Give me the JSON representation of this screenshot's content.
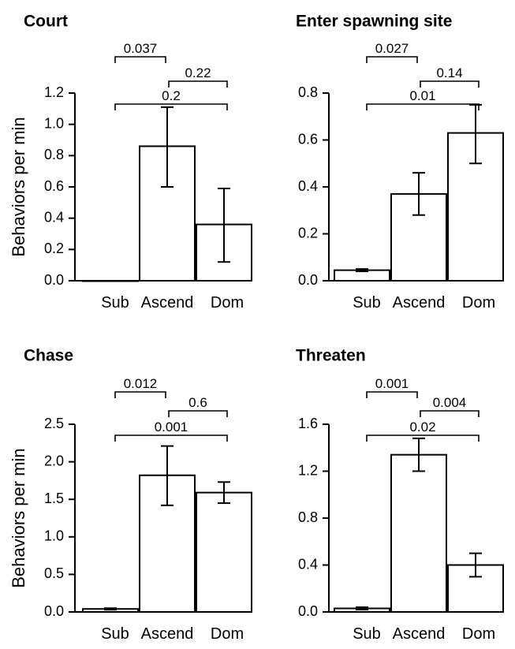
{
  "ylabel": "Behaviors per min",
  "chart_data": [
    {
      "type": "bar",
      "title": "Court",
      "categories": [
        "Sub",
        "Ascend",
        "Dom"
      ],
      "values": [
        0.0,
        0.86,
        0.36
      ],
      "error_low": [
        0.0,
        0.6,
        0.12
      ],
      "error_high": [
        0.0,
        1.11,
        0.59
      ],
      "ylim": [
        0,
        1.2
      ],
      "yticks": [
        "0.0",
        "0.2",
        "0.4",
        "0.6",
        "0.8",
        "1.0",
        "1.2"
      ],
      "ylabel": "Behaviors per min",
      "comparisons": [
        {
          "from": 0,
          "to": 1,
          "label": "0.037",
          "level": 2
        },
        {
          "from": 1,
          "to": 2,
          "label": "0.22",
          "level": 1
        },
        {
          "from": 0,
          "to": 2,
          "label": "0.2",
          "level": 0
        }
      ]
    },
    {
      "type": "bar",
      "title": "Enter spawning site",
      "categories": [
        "Sub",
        "Ascend",
        "Dom"
      ],
      "values": [
        0.045,
        0.37,
        0.63
      ],
      "error_low": [
        0.04,
        0.28,
        0.5
      ],
      "error_high": [
        0.05,
        0.46,
        0.75
      ],
      "ylim": [
        0,
        0.8
      ],
      "yticks": [
        "0.0",
        "0.2",
        "0.4",
        "0.6",
        "0.8"
      ],
      "ylabel": "",
      "comparisons": [
        {
          "from": 0,
          "to": 1,
          "label": "0.027",
          "level": 2
        },
        {
          "from": 1,
          "to": 2,
          "label": "0.14",
          "level": 1
        },
        {
          "from": 0,
          "to": 2,
          "label": "0.01",
          "level": 0
        }
      ]
    },
    {
      "type": "bar",
      "title": "Chase",
      "categories": [
        "Sub",
        "Ascend",
        "Dom"
      ],
      "values": [
        0.04,
        1.82,
        1.59
      ],
      "error_low": [
        0.03,
        1.42,
        1.45
      ],
      "error_high": [
        0.05,
        2.21,
        1.73
      ],
      "ylim": [
        0,
        2.5
      ],
      "yticks": [
        "0.0",
        "0.5",
        "1.0",
        "1.5",
        "2.0",
        "2.5"
      ],
      "ylabel": "Behaviors per min",
      "comparisons": [
        {
          "from": 0,
          "to": 1,
          "label": "0.012",
          "level": 2
        },
        {
          "from": 1,
          "to": 2,
          "label": "0.6",
          "level": 1
        },
        {
          "from": 0,
          "to": 2,
          "label": "0.001",
          "level": 0
        }
      ]
    },
    {
      "type": "bar",
      "title": "Threaten",
      "categories": [
        "Sub",
        "Ascend",
        "Dom"
      ],
      "values": [
        0.03,
        1.34,
        0.4
      ],
      "error_low": [
        0.02,
        1.2,
        0.3
      ],
      "error_high": [
        0.04,
        1.48,
        0.5
      ],
      "ylim": [
        0,
        1.6
      ],
      "yticks": [
        "0.0",
        "0.4",
        "0.8",
        "1.2",
        "1.6"
      ],
      "ylabel": "",
      "comparisons": [
        {
          "from": 0,
          "to": 1,
          "label": "0.001",
          "level": 2
        },
        {
          "from": 1,
          "to": 2,
          "label": "0.004",
          "level": 1
        },
        {
          "from": 0,
          "to": 2,
          "label": "0.02",
          "level": 0
        }
      ]
    }
  ]
}
